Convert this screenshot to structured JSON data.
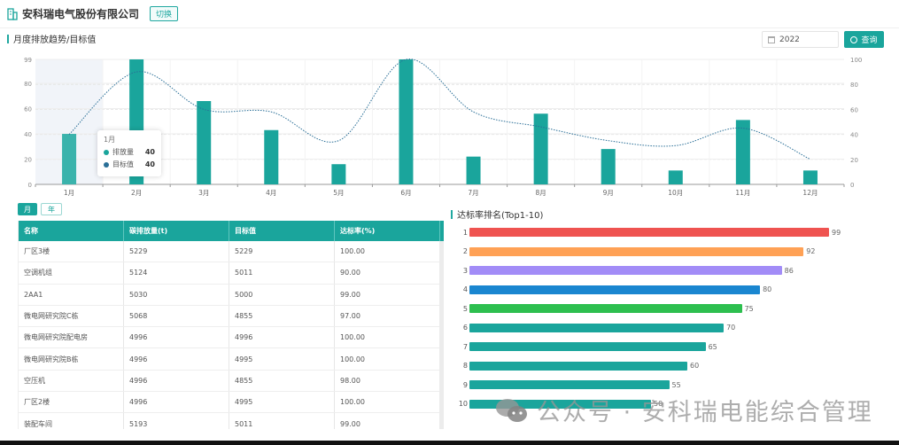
{
  "header": {
    "company_name": "安科瑞电气股份有限公司",
    "switch_label": "切换"
  },
  "trend_section": {
    "title": "月度排放趋势/目标值",
    "year_value": "2022",
    "query_label": "查询"
  },
  "tooltip": {
    "title": "1月",
    "rows": [
      {
        "label": "排放量",
        "value": "40",
        "color": "#1aa59c"
      },
      {
        "label": "目标值",
        "value": "40",
        "color": "#2a6f97"
      }
    ]
  },
  "chart_data": [
    {
      "type": "bar+line",
      "title": "月度排放趋势/目标值",
      "categories": [
        "1月",
        "2月",
        "3月",
        "4月",
        "5月",
        "6月",
        "7月",
        "8月",
        "9月",
        "10月",
        "11月",
        "12月"
      ],
      "series": [
        {
          "name": "排放量",
          "type": "bar",
          "axis": "left",
          "color": "#1aa59c",
          "values": [
            40,
            99,
            66,
            43,
            16,
            99,
            22,
            56,
            28,
            11,
            51,
            11
          ]
        },
        {
          "name": "目标值",
          "type": "line",
          "axis": "right",
          "style": "dotted smooth",
          "color": "#2a6f97",
          "values": [
            40,
            90,
            60,
            58,
            35,
            100,
            58,
            46,
            35,
            31,
            45,
            20
          ]
        }
      ],
      "left_axis": {
        "ticks": [
          "0",
          "20",
          "40",
          "60",
          "80",
          "99"
        ],
        "ylim": [
          0,
          99
        ]
      },
      "right_axis": {
        "ticks": [
          "0",
          "20",
          "40",
          "60",
          "80",
          "100"
        ],
        "ylim": [
          0,
          100
        ]
      },
      "grid": true,
      "highlighted_category": "1月"
    },
    {
      "type": "bar",
      "orientation": "horizontal",
      "title": "达标率排名(Top1-10)",
      "categories": [
        "1",
        "2",
        "3",
        "4",
        "5",
        "6",
        "7",
        "8",
        "9",
        "10"
      ],
      "values": [
        99,
        92,
        86,
        80,
        75,
        70,
        65,
        60,
        55,
        50
      ],
      "colors": [
        "#ef5350",
        "#ffa155",
        "#a28cf7",
        "#1a86d0",
        "#2dbf4f",
        "#1aa59c",
        "#1aa59c",
        "#1aa59c",
        "#1aa59c",
        "#1aa59c"
      ]
    }
  ],
  "table": {
    "tabs": [
      {
        "label": "月",
        "active": true
      },
      {
        "label": "年",
        "active": false
      }
    ],
    "columns": [
      "名称",
      "碳排放量(t)",
      "目标值",
      "达标率(%)"
    ],
    "rows": [
      [
        "厂区3楼",
        "5229",
        "5229",
        "100.00"
      ],
      [
        "空调机组",
        "5124",
        "5011",
        "90.00"
      ],
      [
        "2AA1",
        "5030",
        "5000",
        "99.00"
      ],
      [
        "微电网研究院C栋",
        "5068",
        "4855",
        "97.00"
      ],
      [
        "微电网研究院配电房",
        "4996",
        "4996",
        "100.00"
      ],
      [
        "微电网研究院B栋",
        "4996",
        "4995",
        "100.00"
      ],
      [
        "空压机",
        "4996",
        "4855",
        "98.00"
      ],
      [
        "厂区2楼",
        "4996",
        "4995",
        "100.00"
      ],
      [
        "装配车间",
        "5193",
        "5011",
        "99.00"
      ]
    ]
  },
  "ranking": {
    "title": "达标率排名(Top1-10)"
  },
  "watermark": {
    "text": "公众号 · 安科瑞电能综合管理"
  }
}
